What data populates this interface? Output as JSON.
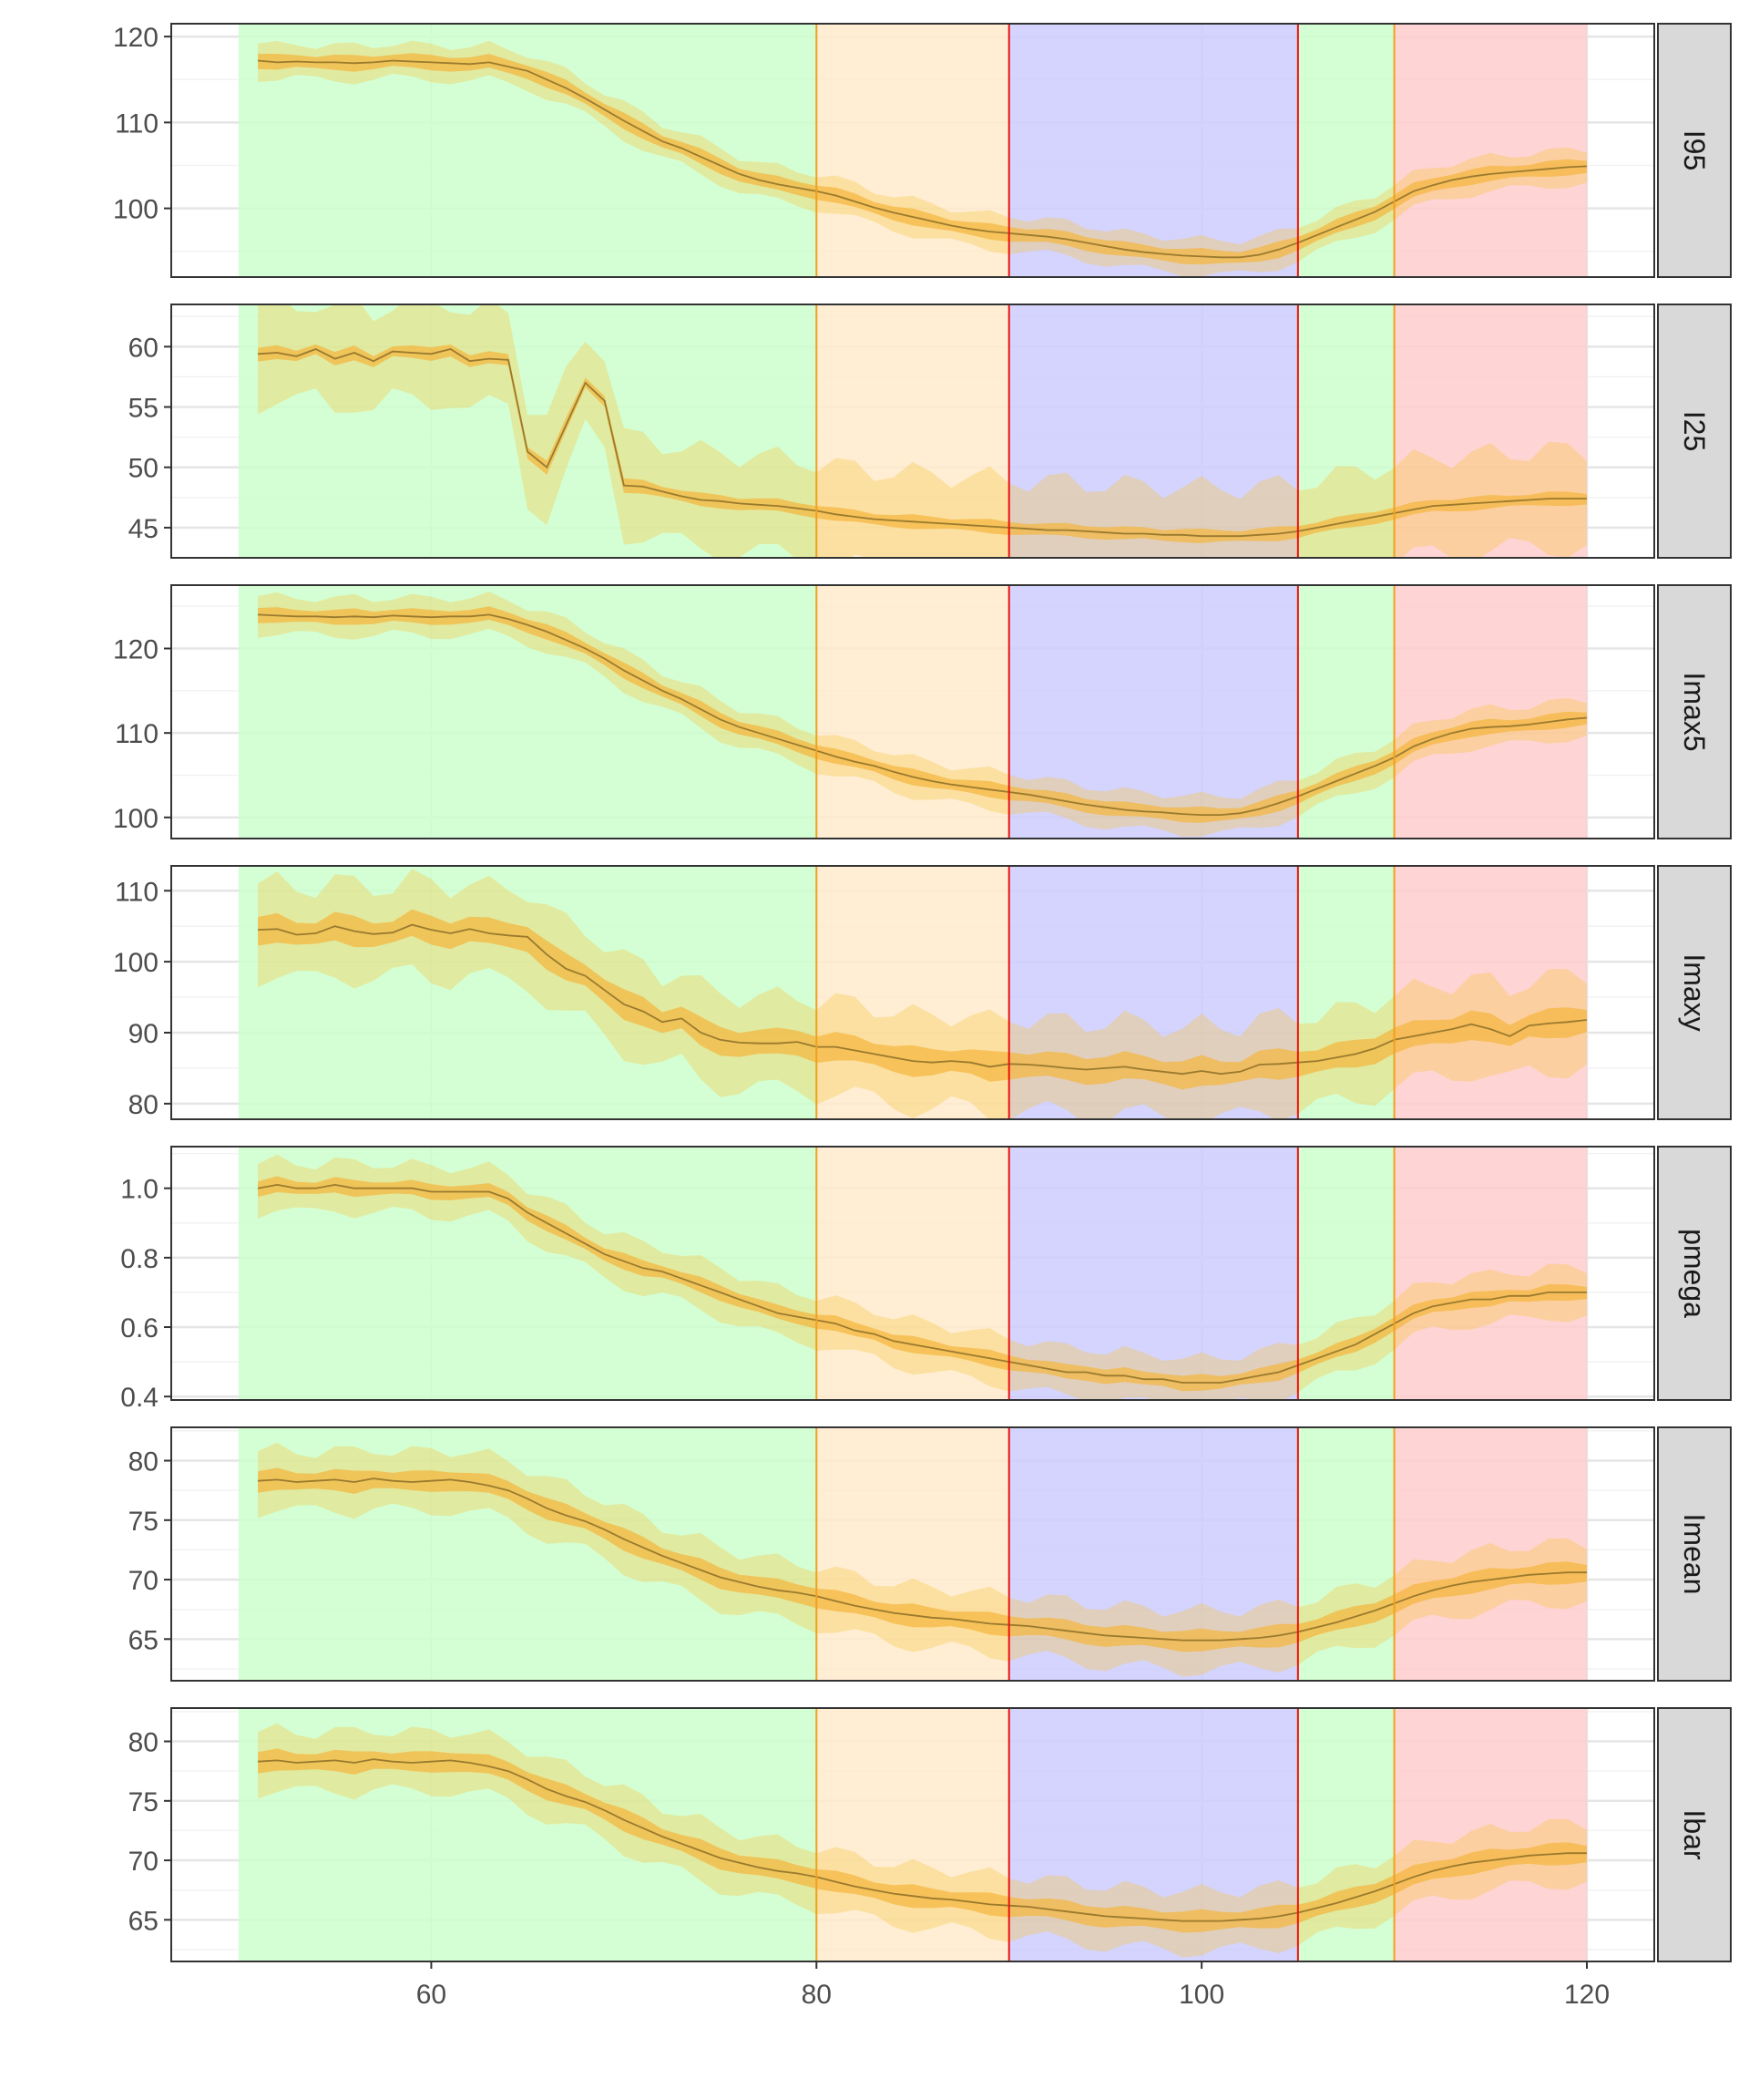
{
  "colors": {
    "panel_border": "#333333",
    "grid_major": "#e5e5e5",
    "grid_minor": "#f2f2f2",
    "strip_fill": "#d9d9d9",
    "line": "#9a7a2e",
    "inner_band": "#f5b53c",
    "outer_band": "#f5c542"
  },
  "chart_data": {
    "type": "line",
    "layout": "facet_grid_rows",
    "xlim": [
      46.5,
      123.5
    ],
    "x_ticks": [
      60,
      80,
      100,
      120
    ],
    "x_tick_labels": [
      "60",
      "80",
      "100",
      "120"
    ],
    "x": [
      51,
      52,
      53,
      54,
      55,
      56,
      57,
      58,
      59,
      60,
      61,
      62,
      63,
      64,
      65,
      66,
      67,
      68,
      69,
      70,
      71,
      72,
      73,
      74,
      75,
      76,
      77,
      78,
      79,
      80,
      81,
      82,
      83,
      84,
      85,
      86,
      87,
      88,
      89,
      90,
      91,
      92,
      93,
      94,
      95,
      96,
      97,
      98,
      99,
      100,
      101,
      102,
      103,
      104,
      105,
      106,
      107,
      108,
      109,
      110,
      111,
      112,
      113,
      114,
      115,
      116,
      117,
      118,
      119,
      120
    ],
    "regions": [
      {
        "from": 50,
        "to": 80,
        "color": "#ccffcc"
      },
      {
        "from": 80,
        "to": 90,
        "color": "#ffebcc"
      },
      {
        "from": 90,
        "to": 105,
        "color": "#ccccff"
      },
      {
        "from": 105,
        "to": 110,
        "color": "#ccffcc"
      },
      {
        "from": 110,
        "to": 120,
        "color": "#ffcccc"
      }
    ],
    "vlines": [
      {
        "x": 80,
        "color": "#f0a020"
      },
      {
        "x": 90,
        "color": "#ee1111"
      },
      {
        "x": 105,
        "color": "#ee1111"
      },
      {
        "x": 110,
        "color": "#f0a020"
      }
    ],
    "facets": [
      {
        "label": "I95",
        "ylim": [
          92,
          121.5
        ],
        "y_ticks": [
          100,
          110,
          120
        ],
        "y_tick_labels": [
          "100",
          "110",
          "120"
        ],
        "values": [
          117.2,
          117.0,
          117.1,
          117.0,
          117.0,
          116.9,
          117.0,
          117.2,
          117.1,
          117.0,
          116.9,
          116.8,
          117.0,
          116.5,
          116.0,
          115.0,
          114.0,
          112.8,
          111.5,
          110.2,
          109.0,
          107.8,
          107.0,
          106.0,
          105.0,
          104.0,
          103.3,
          102.8,
          102.4,
          102.0,
          101.5,
          100.8,
          100.1,
          99.5,
          99.0,
          98.5,
          98.0,
          97.6,
          97.3,
          97.1,
          96.9,
          96.7,
          96.4,
          96.0,
          95.6,
          95.2,
          94.9,
          94.7,
          94.5,
          94.4,
          94.3,
          94.3,
          94.6,
          95.2,
          96.0,
          96.9,
          97.8,
          98.7,
          99.6,
          100.8,
          102.0,
          102.7,
          103.3,
          103.7,
          104.0,
          104.2,
          104.4,
          104.6,
          104.8,
          104.9
        ],
        "inner_spread": 0.8,
        "outer_spread": 2.0
      },
      {
        "label": "I25",
        "ylim": [
          42.5,
          63.5
        ],
        "y_ticks": [
          45,
          50,
          55,
          60
        ],
        "y_tick_labels": [
          "45",
          "50",
          "55",
          "60"
        ],
        "values": [
          59.4,
          59.5,
          59.2,
          59.8,
          59.0,
          59.5,
          58.8,
          59.6,
          59.5,
          59.4,
          59.8,
          58.8,
          59.0,
          58.9,
          51.3,
          50.0,
          53.5,
          57.0,
          55.5,
          48.5,
          48.4,
          48.0,
          47.6,
          47.3,
          47.2,
          47.0,
          46.9,
          46.8,
          46.6,
          46.4,
          46.1,
          45.9,
          45.7,
          45.6,
          45.5,
          45.4,
          45.3,
          45.2,
          45.1,
          45.0,
          44.9,
          44.8,
          44.8,
          44.7,
          44.6,
          44.5,
          44.5,
          44.4,
          44.4,
          44.3,
          44.3,
          44.3,
          44.4,
          44.5,
          44.7,
          45.0,
          45.3,
          45.6,
          45.9,
          46.2,
          46.5,
          46.8,
          46.9,
          47.0,
          47.1,
          47.2,
          47.3,
          47.4,
          47.4,
          47.4
        ],
        "inner_spread": 0.5,
        "outer_spread": 4.0
      },
      {
        "label": "Imax5",
        "ylim": [
          97.5,
          127.5
        ],
        "y_ticks": [
          100,
          110,
          120
        ],
        "y_tick_labels": [
          "100",
          "110",
          "120"
        ],
        "values": [
          124.0,
          123.9,
          123.8,
          123.8,
          123.7,
          123.8,
          123.7,
          123.9,
          123.8,
          123.7,
          123.8,
          123.8,
          124.0,
          123.5,
          122.8,
          122.0,
          121.0,
          120.0,
          118.8,
          117.4,
          116.2,
          115.0,
          114.0,
          112.8,
          111.6,
          110.7,
          110.0,
          109.3,
          108.6,
          107.9,
          107.2,
          106.6,
          106.1,
          105.4,
          104.8,
          104.3,
          103.9,
          103.6,
          103.3,
          103.0,
          102.7,
          102.3,
          101.9,
          101.5,
          101.2,
          100.9,
          100.7,
          100.6,
          100.4,
          100.3,
          100.3,
          100.5,
          101.0,
          101.7,
          102.5,
          103.4,
          104.3,
          105.2,
          106.1,
          107.1,
          108.4,
          109.3,
          110.0,
          110.5,
          110.7,
          110.8,
          111.0,
          111.3,
          111.6,
          111.8
        ],
        "inner_spread": 0.8,
        "outer_spread": 2.2
      },
      {
        "label": "Imaxy",
        "ylim": [
          77.8,
          113.5
        ],
        "y_ticks": [
          80,
          90,
          100,
          110
        ],
        "y_tick_labels": [
          "80",
          "90",
          "100",
          "110"
        ],
        "values": [
          104.5,
          104.6,
          103.8,
          104.0,
          105.0,
          104.3,
          103.9,
          104.1,
          105.2,
          104.5,
          104.0,
          104.6,
          104.0,
          103.7,
          103.5,
          101.0,
          99.0,
          98.0,
          96.0,
          94.0,
          93.0,
          91.5,
          92.0,
          90.0,
          89.0,
          88.6,
          88.5,
          88.5,
          88.7,
          88.0,
          88.0,
          87.5,
          87.0,
          86.5,
          86.0,
          85.8,
          86.0,
          85.8,
          85.2,
          85.6,
          85.5,
          85.3,
          85.0,
          84.8,
          85.0,
          85.2,
          84.8,
          84.5,
          84.2,
          84.6,
          84.2,
          84.5,
          85.5,
          85.6,
          85.8,
          86.0,
          86.5,
          87.0,
          87.8,
          89.0,
          89.5,
          90.0,
          90.5,
          91.2,
          90.5,
          89.5,
          91.0,
          91.3,
          91.5,
          91.8
        ],
        "inner_spread": 1.8,
        "outer_spread": 6.5
      },
      {
        "label": "pmega",
        "ylim": [
          0.39,
          1.12
        ],
        "y_ticks": [
          0.4,
          0.6,
          0.8,
          1.0
        ],
        "y_tick_labels": [
          "0.4",
          "0.6",
          "0.8",
          "1.0"
        ],
        "values": [
          1.0,
          1.01,
          1.0,
          1.0,
          1.01,
          1.0,
          1.0,
          1.0,
          1.0,
          0.99,
          0.99,
          0.99,
          0.99,
          0.97,
          0.93,
          0.9,
          0.87,
          0.84,
          0.81,
          0.79,
          0.77,
          0.76,
          0.74,
          0.72,
          0.7,
          0.68,
          0.66,
          0.64,
          0.63,
          0.62,
          0.61,
          0.59,
          0.58,
          0.56,
          0.55,
          0.54,
          0.53,
          0.52,
          0.51,
          0.5,
          0.49,
          0.48,
          0.47,
          0.47,
          0.46,
          0.46,
          0.45,
          0.45,
          0.44,
          0.44,
          0.44,
          0.45,
          0.46,
          0.47,
          0.49,
          0.51,
          0.53,
          0.55,
          0.58,
          0.61,
          0.64,
          0.66,
          0.67,
          0.68,
          0.68,
          0.69,
          0.69,
          0.7,
          0.7,
          0.7
        ],
        "inner_spread": 0.02,
        "outer_spread": 0.07
      },
      {
        "label": "Imean",
        "ylim": [
          61.5,
          82.8
        ],
        "y_ticks": [
          65,
          70,
          75,
          80
        ],
        "y_tick_labels": [
          "65",
          "70",
          "75",
          "80"
        ],
        "values": [
          78.3,
          78.4,
          78.2,
          78.3,
          78.4,
          78.2,
          78.5,
          78.3,
          78.2,
          78.3,
          78.4,
          78.2,
          77.9,
          77.5,
          76.8,
          76.0,
          75.4,
          74.9,
          74.2,
          73.4,
          72.7,
          72.0,
          71.4,
          70.8,
          70.2,
          69.8,
          69.4,
          69.1,
          68.9,
          68.6,
          68.2,
          67.8,
          67.5,
          67.2,
          67.0,
          66.8,
          66.7,
          66.5,
          66.3,
          66.2,
          66.1,
          65.9,
          65.7,
          65.5,
          65.3,
          65.2,
          65.1,
          65.0,
          64.9,
          64.9,
          64.9,
          65.0,
          65.1,
          65.3,
          65.6,
          66.0,
          66.4,
          66.9,
          67.4,
          68.0,
          68.6,
          69.1,
          69.5,
          69.8,
          70.0,
          70.2,
          70.4,
          70.5,
          70.6,
          70.6
        ],
        "inner_spread": 0.8,
        "outer_spread": 2.5
      },
      {
        "label": "Ibar",
        "ylim": [
          61.5,
          82.8
        ],
        "y_ticks": [
          65,
          70,
          75,
          80
        ],
        "y_tick_labels": [
          "65",
          "70",
          "75",
          "80"
        ],
        "values": [
          78.3,
          78.4,
          78.2,
          78.3,
          78.4,
          78.2,
          78.5,
          78.3,
          78.2,
          78.3,
          78.4,
          78.2,
          77.9,
          77.5,
          76.8,
          76.0,
          75.4,
          74.9,
          74.2,
          73.4,
          72.7,
          72.0,
          71.4,
          70.8,
          70.2,
          69.8,
          69.4,
          69.1,
          68.9,
          68.6,
          68.2,
          67.8,
          67.5,
          67.2,
          67.0,
          66.8,
          66.7,
          66.5,
          66.3,
          66.2,
          66.1,
          65.9,
          65.7,
          65.5,
          65.3,
          65.2,
          65.1,
          65.0,
          64.9,
          64.9,
          64.9,
          65.0,
          65.1,
          65.3,
          65.6,
          66.0,
          66.4,
          66.9,
          67.4,
          68.0,
          68.6,
          69.1,
          69.5,
          69.8,
          70.0,
          70.2,
          70.4,
          70.5,
          70.6,
          70.6
        ],
        "inner_spread": 0.8,
        "outer_spread": 2.5
      }
    ]
  }
}
